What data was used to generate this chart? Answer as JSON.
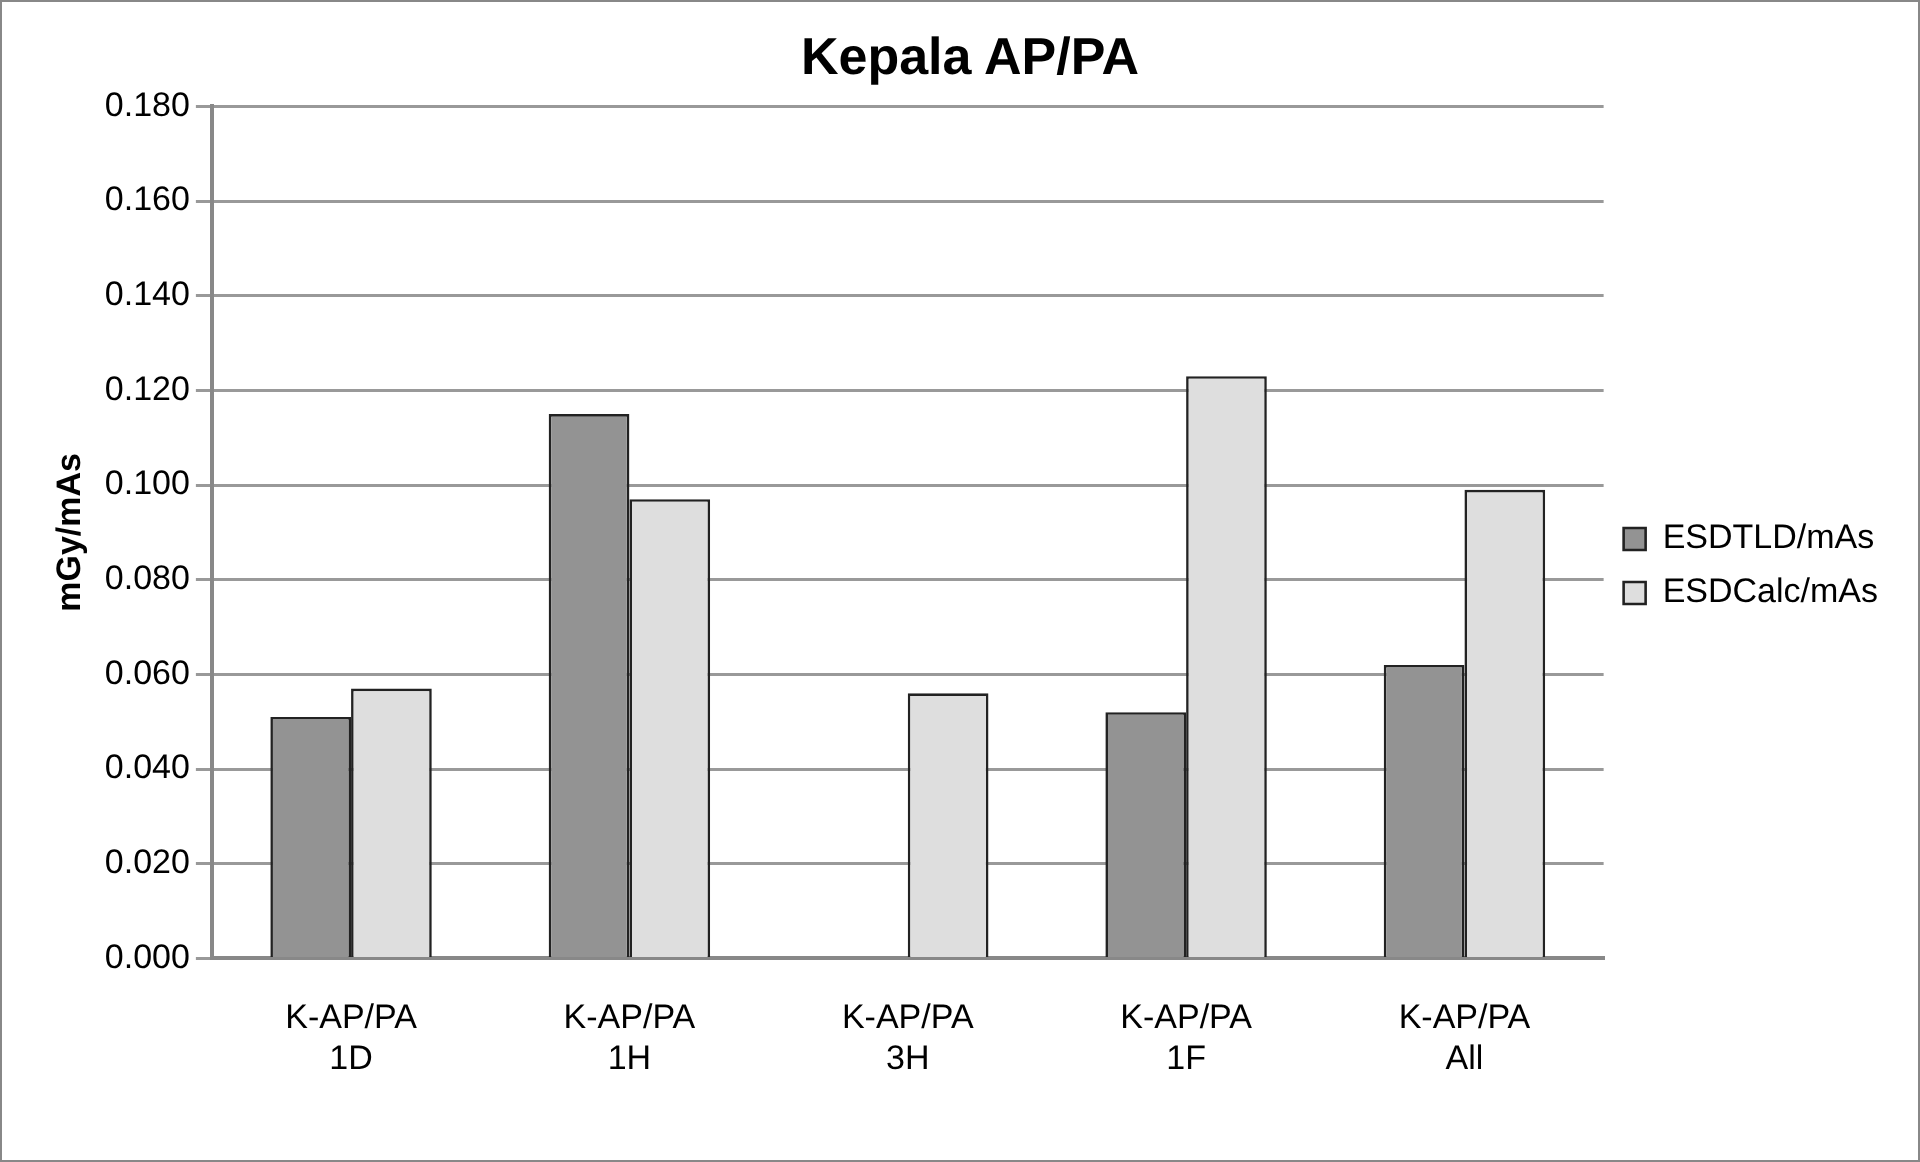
{
  "chart_data": {
    "type": "bar",
    "title": "Kepala AP/PA",
    "ylabel": "mGy/mAs",
    "categories": [
      "K-AP/PA 1D",
      "K-AP/PA 1H",
      "K-AP/PA 3H",
      "K-AP/PA 1F",
      "K-AP/PA All"
    ],
    "series": [
      {
        "name": "ESDTLD/mAs",
        "color": "#939393",
        "values": [
          0.051,
          0.115,
          null,
          0.052,
          0.062
        ]
      },
      {
        "name": "ESDCalc/mAs",
        "color": "#dedede",
        "values": [
          0.057,
          0.097,
          0.056,
          0.123,
          0.099
        ]
      }
    ],
    "ylim": [
      0,
      0.18
    ],
    "yticks": [
      {
        "value": 0,
        "label": "0.000"
      },
      {
        "value": 0.02,
        "label": "0.020"
      },
      {
        "value": 0.04,
        "label": "0.040"
      },
      {
        "value": 0.06,
        "label": "0.060"
      },
      {
        "value": 0.08,
        "label": "0.080"
      },
      {
        "value": 0.1,
        "label": "0.100"
      },
      {
        "value": 0.12,
        "label": "0.120"
      },
      {
        "value": 0.14,
        "label": "0.140"
      },
      {
        "value": 0.16,
        "label": "0.160"
      },
      {
        "value": 0.18,
        "label": "0.180"
      }
    ],
    "grid": "y",
    "legend": "right"
  }
}
